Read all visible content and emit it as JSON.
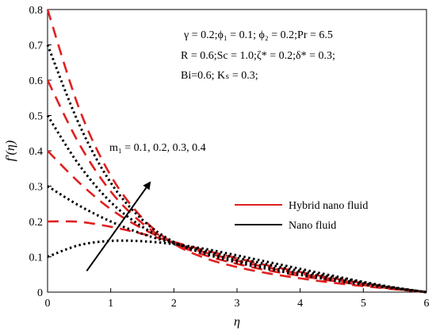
{
  "chart_data": {
    "type": "line",
    "xlabel": "η",
    "ylabel": "f'(η)",
    "xlim": [
      0,
      6
    ],
    "ylim": [
      0,
      0.8
    ],
    "x_ticks": [
      "0",
      "1",
      "2",
      "3",
      "4",
      "5",
      "6"
    ],
    "y_ticks": [
      "0",
      "0.1",
      "0.2",
      "0.3",
      "0.4",
      "0.5",
      "0.6",
      "0.7",
      "0.8"
    ],
    "grid": false,
    "legend_position": "right",
    "series": [
      {
        "name": "Hybrid nano fluid",
        "color": "#e02020",
        "dash": "dashed",
        "curves": [
          {
            "x": [
              0,
              0.5,
              1,
              1.5,
              2,
              2.5,
              3,
              3.5,
              4,
              4.5,
              5,
              5.5,
              6
            ],
            "y": [
              0.2,
              0.199,
              0.185,
              0.165,
              0.142,
              0.118,
              0.096,
              0.075,
              0.057,
              0.04,
              0.025,
              0.012,
              0.0
            ]
          },
          {
            "x": [
              0,
              0.5,
              1,
              1.5,
              2,
              2.5,
              3,
              3.5,
              4,
              4.5,
              5,
              5.5,
              6
            ],
            "y": [
              0.4,
              0.31,
              0.235,
              0.18,
              0.14,
              0.112,
              0.089,
              0.069,
              0.052,
              0.037,
              0.023,
              0.011,
              0.0
            ]
          },
          {
            "x": [
              0,
              0.5,
              1,
              1.5,
              2,
              2.5,
              3,
              3.5,
              4,
              4.5,
              5,
              5.5,
              6
            ],
            "y": [
              0.6,
              0.42,
              0.285,
              0.195,
              0.138,
              0.104,
              0.08,
              0.061,
              0.046,
              0.032,
              0.02,
              0.009,
              0.0
            ]
          },
          {
            "x": [
              0,
              0.5,
              1,
              1.5,
              2,
              2.5,
              3,
              3.5,
              4,
              4.5,
              5,
              5.5,
              6
            ],
            "y": [
              0.8,
              0.52,
              0.33,
              0.21,
              0.137,
              0.096,
              0.071,
              0.053,
              0.039,
              0.027,
              0.017,
              0.008,
              0.0
            ]
          }
        ]
      },
      {
        "name": "Nano fluid",
        "color": "#000000",
        "dash": "dotted",
        "curves": [
          {
            "x": [
              0,
              0.5,
              1,
              1.5,
              2,
              2.5,
              3,
              3.5,
              4,
              4.5,
              5,
              5.5,
              6
            ],
            "y": [
              0.1,
              0.133,
              0.145,
              0.144,
              0.136,
              0.122,
              0.104,
              0.085,
              0.066,
              0.047,
              0.029,
              0.013,
              0.0
            ]
          },
          {
            "x": [
              0,
              0.5,
              1,
              1.5,
              2,
              2.5,
              3,
              3.5,
              4,
              4.5,
              5,
              5.5,
              6
            ],
            "y": [
              0.3,
              0.245,
              0.2,
              0.165,
              0.138,
              0.117,
              0.097,
              0.078,
              0.06,
              0.043,
              0.027,
              0.012,
              0.0
            ]
          },
          {
            "x": [
              0,
              0.5,
              1,
              1.5,
              2,
              2.5,
              3,
              3.5,
              4,
              4.5,
              5,
              5.5,
              6
            ],
            "y": [
              0.5,
              0.36,
              0.255,
              0.185,
              0.14,
              0.112,
              0.09,
              0.071,
              0.054,
              0.038,
              0.024,
              0.011,
              0.0
            ]
          },
          {
            "x": [
              0,
              0.5,
              1,
              1.5,
              2,
              2.5,
              3,
              3.5,
              4,
              4.5,
              5,
              5.5,
              6
            ],
            "y": [
              0.7,
              0.475,
              0.31,
              0.205,
              0.142,
              0.108,
              0.084,
              0.065,
              0.049,
              0.034,
              0.021,
              0.01,
              0.0
            ]
          }
        ]
      }
    ],
    "annotations": {
      "params_line1": "γ = 0.2;ϕ₁ = 0.1; ϕ₂ = 0.2;Pr = 6.5",
      "params_line2": "R = 0.6;Sc = 1.0;ζ* = 0.2;δ* = 0.3;",
      "params_line3": "Bi=0.6; Kₛ = 0.3;",
      "arrow_label": "m₁ = 0.1, 0.2, 0.3, 0.4",
      "arrow": {
        "from": [
          0.62,
          0.06
        ],
        "to": [
          1.62,
          0.31
        ]
      }
    }
  }
}
